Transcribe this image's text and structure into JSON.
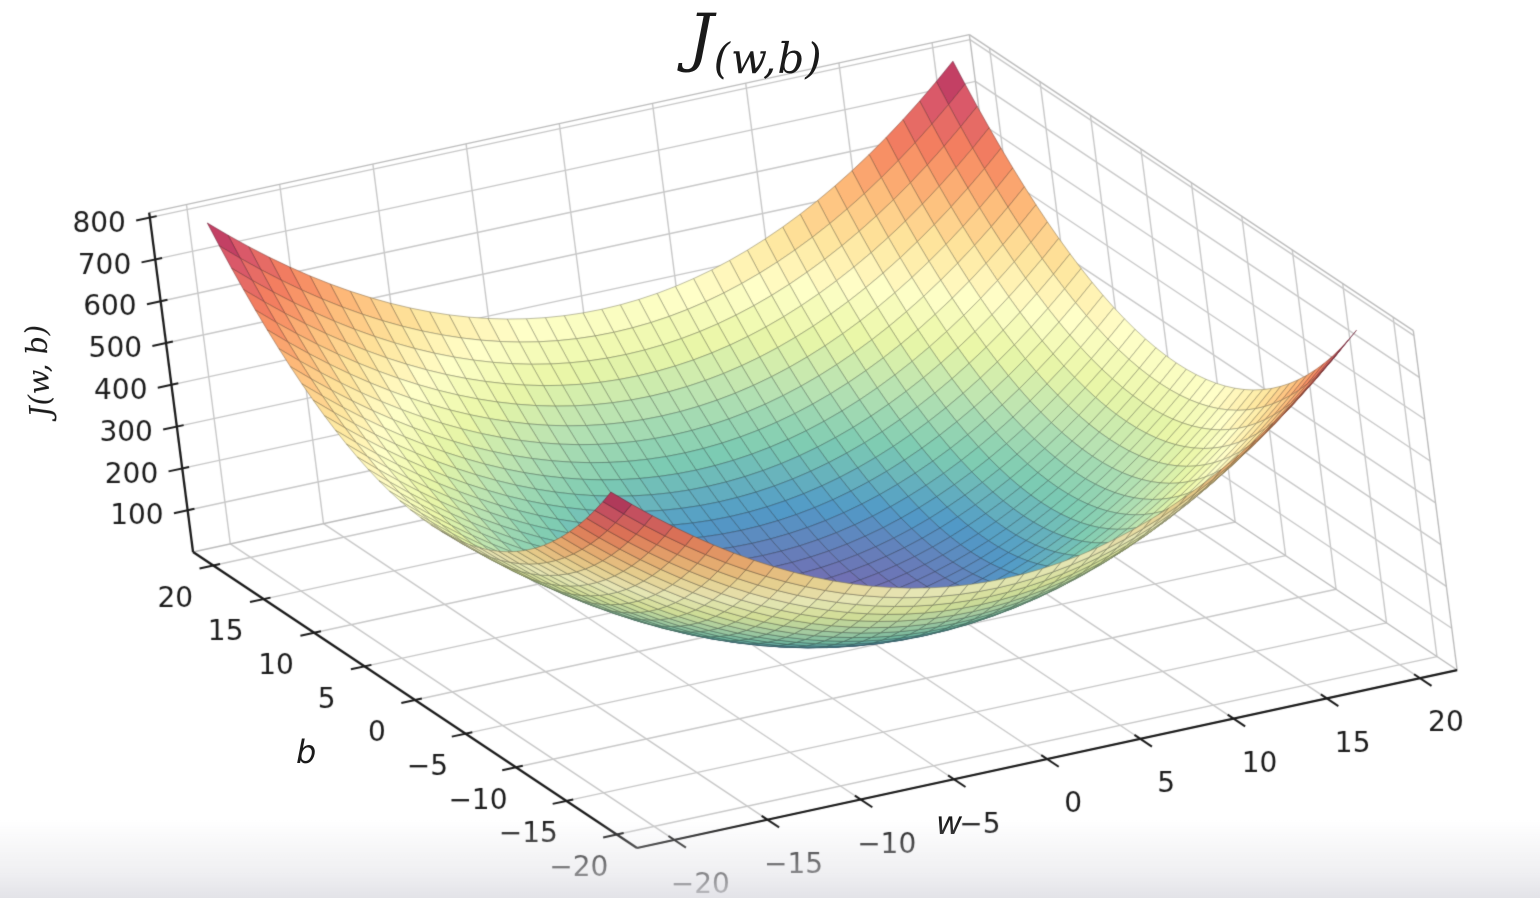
{
  "chart_data": {
    "type": "surface",
    "title": "J_(w,b)",
    "title_main": "J",
    "title_subscript": "(w,b)",
    "x": {
      "label": "w",
      "tick_values": [
        -20,
        -15,
        -10,
        -5,
        0,
        5,
        10,
        15,
        20
      ],
      "tick_labels": [
        "−20",
        "−15",
        "−10",
        "−5",
        "0",
        "5",
        "10",
        "15",
        "20"
      ],
      "range": [
        -22,
        22
      ]
    },
    "y": {
      "label": "b",
      "tick_values": [
        20,
        15,
        10,
        5,
        0,
        -5,
        -10,
        -15,
        -20
      ],
      "tick_labels": [
        "20",
        "15",
        "10",
        "5",
        "0",
        "−5",
        "−10",
        "−15",
        "−20"
      ],
      "range": [
        -22,
        22
      ]
    },
    "z": {
      "label": "J(w, b)",
      "tick_values": [
        100,
        200,
        300,
        400,
        500,
        600,
        700,
        800
      ],
      "tick_labels": [
        "100",
        "200",
        "300",
        "400",
        "500",
        "600",
        "700",
        "800"
      ],
      "range": [
        0,
        812
      ]
    },
    "surface": {
      "function": "J(w,b) = w^2 + b^2",
      "coeff_w2": 1,
      "coeff_b2": 1,
      "w_domain": [
        -20,
        20
      ],
      "b_domain": [
        -20,
        20
      ],
      "grid_divisions": 40,
      "J_min": 0,
      "J_max": 800,
      "sample_w": [
        -20,
        -15,
        -10,
        -5,
        0,
        5,
        10,
        15,
        20
      ],
      "sample_b": [
        20,
        15,
        10,
        5,
        0,
        -5,
        -10,
        -15,
        -20
      ],
      "sample_J": [
        [
          800,
          625,
          500,
          425,
          400,
          425,
          500,
          625,
          800
        ],
        [
          625,
          450,
          325,
          250,
          225,
          250,
          325,
          450,
          625
        ],
        [
          500,
          325,
          200,
          125,
          100,
          125,
          200,
          325,
          500
        ],
        [
          425,
          250,
          125,
          50,
          25,
          50,
          125,
          250,
          425
        ],
        [
          400,
          225,
          100,
          25,
          0,
          25,
          100,
          225,
          400
        ],
        [
          425,
          250,
          125,
          50,
          25,
          50,
          125,
          250,
          425
        ],
        [
          500,
          325,
          200,
          125,
          100,
          125,
          200,
          325,
          500
        ],
        [
          625,
          450,
          325,
          250,
          225,
          250,
          325,
          450,
          625
        ],
        [
          800,
          625,
          500,
          425,
          400,
          425,
          500,
          625,
          800
        ]
      ]
    },
    "colormap": {
      "name": "spectral-reversed (low J = blue/purple, high J = dark red)",
      "stops": [
        "#5e4fa2",
        "#3288bd",
        "#66c2a5",
        "#abdda4",
        "#e6f598",
        "#ffffbf",
        "#fee08b",
        "#fdae61",
        "#f46d43",
        "#d53e4f",
        "#9e0142"
      ]
    },
    "colors": {
      "axis": "#1c1c1c",
      "grid": "#c9c9c9",
      "pane_edge": "#bdbdbd",
      "background": "#ffffff",
      "tick_text": "#1c1c1c"
    },
    "legend": "none",
    "grid_on": true
  }
}
